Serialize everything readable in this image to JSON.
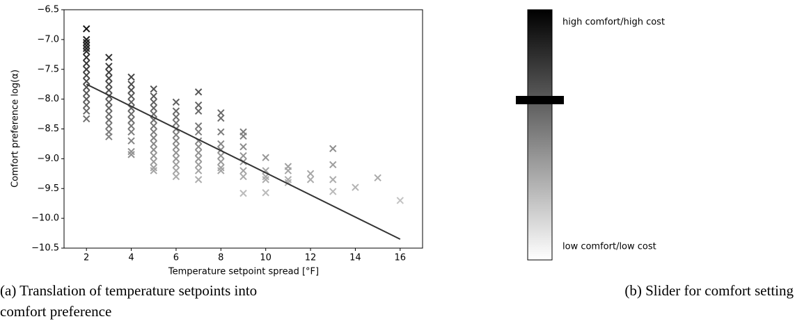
{
  "chart_data": {
    "type": "scatter",
    "xlabel": "Temperature setpoint spread [°F]",
    "ylabel": "Comfort preference log(α)",
    "xlim": [
      1,
      17
    ],
    "ylim": [
      -10.5,
      -6.5
    ],
    "xticks": [
      2,
      4,
      6,
      8,
      10,
      12,
      14,
      16
    ],
    "yticks": [
      {
        "value": -10.5,
        "label": "−10.5"
      },
      {
        "value": -10.0,
        "label": "−10.0"
      },
      {
        "value": -9.5,
        "label": "−9.5"
      },
      {
        "value": -9.0,
        "label": "−9.0"
      },
      {
        "value": -8.5,
        "label": "−8.5"
      },
      {
        "value": -8.0,
        "label": "−8.0"
      },
      {
        "value": -7.5,
        "label": "−7.5"
      },
      {
        "value": -7.0,
        "label": "−7.0"
      },
      {
        "value": -6.5,
        "label": "−6.5"
      }
    ],
    "series": [
      {
        "marker": "x",
        "cmap": "Greys",
        "x": [
          2,
          2,
          2,
          2,
          2,
          2,
          2,
          2,
          2,
          2,
          2,
          2,
          2,
          2,
          2,
          2,
          2,
          3,
          3,
          3,
          3,
          3,
          3,
          3,
          3,
          3,
          3,
          3,
          3,
          3,
          3,
          4,
          4,
          4,
          4,
          4,
          4,
          4,
          4,
          4,
          4,
          4,
          4,
          4,
          5,
          5,
          5,
          5,
          5,
          5,
          5,
          5,
          5,
          5,
          5,
          5,
          5,
          5,
          5,
          6,
          6,
          6,
          6,
          6,
          6,
          6,
          6,
          6,
          6,
          6,
          6,
          6,
          7,
          7,
          7,
          7,
          7,
          7,
          7,
          7,
          7,
          7,
          7,
          7,
          8,
          8,
          8,
          8,
          8,
          8,
          8,
          8,
          8,
          9,
          9,
          9,
          9,
          9,
          9,
          9,
          9,
          10,
          10,
          10,
          10,
          10,
          11,
          11,
          11,
          11,
          12,
          12,
          13,
          13,
          13,
          13,
          14,
          15,
          16
        ],
        "values": [
          -6.82,
          -7.0,
          -7.05,
          -7.1,
          -7.15,
          -7.2,
          -7.3,
          -7.4,
          -7.5,
          -7.6,
          -7.7,
          -7.8,
          -7.9,
          -8.0,
          -8.1,
          -8.2,
          -8.33,
          -7.3,
          -7.45,
          -7.55,
          -7.65,
          -7.75,
          -7.85,
          -7.95,
          -8.05,
          -8.15,
          -8.25,
          -8.35,
          -8.45,
          -8.55,
          -8.63,
          -7.63,
          -7.75,
          -7.85,
          -7.95,
          -8.05,
          -8.15,
          -8.25,
          -8.35,
          -8.45,
          -8.55,
          -8.7,
          -8.88,
          -8.93,
          -7.83,
          -7.95,
          -8.05,
          -8.15,
          -8.25,
          -8.35,
          -8.45,
          -8.55,
          -8.65,
          -8.75,
          -8.85,
          -8.95,
          -9.05,
          -9.15,
          -9.2,
          -8.05,
          -8.2,
          -8.3,
          -8.4,
          -8.5,
          -8.6,
          -8.7,
          -8.8,
          -8.9,
          -9.0,
          -9.1,
          -9.2,
          -9.3,
          -7.88,
          -8.1,
          -8.2,
          -8.45,
          -8.55,
          -8.7,
          -8.8,
          -8.9,
          -9.0,
          -9.1,
          -9.2,
          -9.35,
          -8.23,
          -8.32,
          -8.55,
          -8.75,
          -8.85,
          -8.95,
          -9.05,
          -9.15,
          -9.2,
          -8.55,
          -8.62,
          -8.8,
          -8.95,
          -9.05,
          -9.2,
          -9.3,
          -9.58,
          -8.98,
          -9.2,
          -9.3,
          -9.35,
          -9.57,
          -9.13,
          -9.2,
          -9.35,
          -9.4,
          -9.25,
          -9.35,
          -8.83,
          -9.1,
          -9.35,
          -9.55,
          -9.48,
          -9.32,
          -9.7
        ]
      },
      {
        "style": "line",
        "color": "#333333",
        "x": [
          2,
          16
        ],
        "values": [
          -7.75,
          -10.35
        ]
      }
    ]
  },
  "slider": {
    "top_label": "high comfort/high cost",
    "bottom_label": "low comfort/low cost"
  },
  "captions": [
    "(a) Translation of temperature setpoints into",
    "comfort preference",
    "(b) Slider for comfort setting"
  ]
}
